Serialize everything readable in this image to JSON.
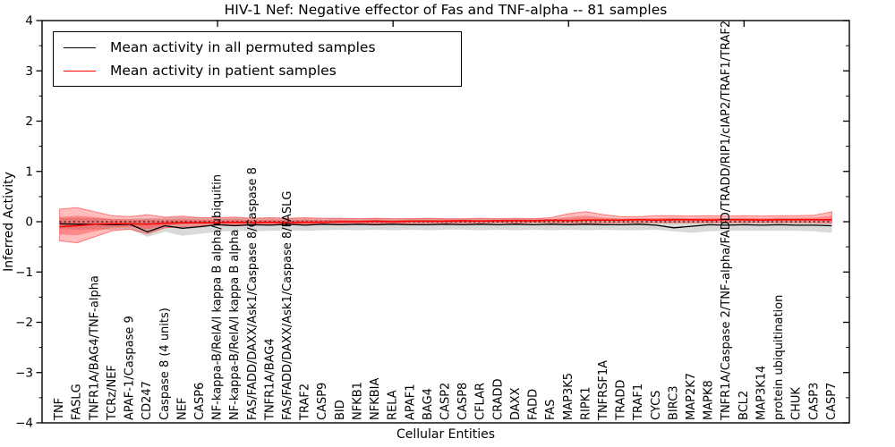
{
  "chart_data": {
    "type": "line",
    "title": "HIV-1 Nef: Negative effector of Fas and TNF-alpha -- 81 samples",
    "xlabel": "Cellular Entities",
    "ylabel": "Inferred Activity",
    "ylim": [
      -4,
      4
    ],
    "xlim": [
      0,
      46
    ],
    "grid": false,
    "legend_position": "upper left",
    "yticks": {
      "values": [
        -4,
        -3,
        -2,
        -1,
        0,
        1,
        2,
        3,
        4
      ],
      "labels": [
        "−4",
        "−3",
        "−2",
        "−1",
        "0",
        "1",
        "2",
        "3",
        "4"
      ],
      "minor_step": 0.5
    },
    "xticks_top": [
      10,
      20,
      30,
      40
    ],
    "categories": [
      "TNF",
      "FASLG",
      "TNFR1A/BAG4/TNF-alpha",
      "TCRz/NEF",
      "APAF-1/Caspase 9",
      "CD247",
      "Caspase 8 (4 units)",
      "NEF",
      "CASP6",
      "NF-kappa-B/RelA/I kappa B alpha/ubiquitin",
      "NF-kappa-B/RelA/I kappa B alpha",
      "FAS/FADD/DAXX/Ask1/Caspase 8/Caspase 8",
      "TNFR1A/BAG4",
      "FAS/FADD/DAXX/Ask1/Caspase 8/FASLG",
      "TRAF2",
      "CASP9",
      "BID",
      "NFKB1",
      "NFKBIA",
      "RELA",
      "APAF1",
      "BAG4",
      "CASP2",
      "CASP8",
      "CFLAR",
      "CRADD",
      "DAXX",
      "FADD",
      "FAS",
      "MAP3K5",
      "RIPK1",
      "TNFRSF1A",
      "TRADD",
      "TRAF1",
      "CYCS",
      "BIRC3",
      "MAP2K7",
      "MAPK8",
      "TNFR1A/Caspase 2/TNF-alpha/FADD/TRADD/RIP1/cIAP2/TRAF1/TRAF2",
      "BCL2",
      "MAP3K14",
      "protein ubiquitination",
      "CHUK",
      "CASP3",
      "CASP7"
    ],
    "zero_line": {
      "y": 0,
      "style": "dotted",
      "color": "#000000"
    },
    "series": [
      {
        "name": "Mean activity in all permuted samples",
        "color": "#000000",
        "values": [
          -0.04,
          -0.05,
          -0.05,
          -0.06,
          -0.05,
          -0.2,
          -0.08,
          -0.13,
          -0.1,
          -0.06,
          -0.08,
          -0.06,
          -0.07,
          -0.05,
          -0.07,
          -0.05,
          -0.06,
          -0.05,
          -0.06,
          -0.05,
          -0.06,
          -0.06,
          -0.05,
          -0.06,
          -0.05,
          -0.06,
          -0.05,
          -0.06,
          -0.05,
          -0.06,
          -0.05,
          -0.06,
          -0.06,
          -0.05,
          -0.07,
          -0.12,
          -0.09,
          -0.06,
          -0.07,
          -0.06,
          -0.07,
          -0.06,
          -0.07,
          -0.07,
          -0.08
        ]
      },
      {
        "name": "Mean activity in patient samples",
        "color": "#ff0000",
        "values": [
          -0.1,
          -0.08,
          -0.05,
          -0.04,
          -0.04,
          -0.05,
          -0.03,
          -0.02,
          -0.02,
          -0.02,
          -0.01,
          -0.02,
          -0.01,
          -0.02,
          -0.01,
          -0.01,
          0.0,
          0.0,
          0.01,
          0.0,
          0.01,
          0.01,
          0.01,
          0.02,
          0.01,
          0.02,
          0.02,
          0.02,
          0.03,
          0.02,
          0.03,
          0.03,
          0.03,
          0.04,
          0.03,
          0.04,
          0.04,
          0.03,
          0.04,
          0.04,
          0.03,
          0.04,
          0.04,
          0.04,
          0.04
        ]
      }
    ],
    "bands": [
      {
        "name": "permuted-samples-spread",
        "color": "rgba(128,128,128,0.30)",
        "edge": "none",
        "upper": [
          0.07,
          0.08,
          0.07,
          0.06,
          0.06,
          0.07,
          0.08,
          0.09,
          0.08,
          0.07,
          0.08,
          0.07,
          0.08,
          0.07,
          0.07,
          0.06,
          0.07,
          0.06,
          0.07,
          0.06,
          0.06,
          0.07,
          0.06,
          0.06,
          0.06,
          0.06,
          0.06,
          0.06,
          0.06,
          0.06,
          0.06,
          0.06,
          0.06,
          0.06,
          0.06,
          0.07,
          0.06,
          0.06,
          0.06,
          0.06,
          0.06,
          0.06,
          0.06,
          0.06,
          0.05
        ],
        "lower": [
          -0.14,
          -0.16,
          -0.15,
          -0.16,
          -0.15,
          -0.3,
          -0.2,
          -0.28,
          -0.24,
          -0.2,
          -0.18,
          -0.19,
          -0.18,
          -0.17,
          -0.18,
          -0.17,
          -0.16,
          -0.17,
          -0.16,
          -0.17,
          -0.16,
          -0.17,
          -0.16,
          -0.16,
          -0.17,
          -0.16,
          -0.17,
          -0.16,
          -0.17,
          -0.16,
          -0.17,
          -0.16,
          -0.17,
          -0.17,
          -0.16,
          -0.19,
          -0.22,
          -0.19,
          -0.18,
          -0.18,
          -0.18,
          -0.18,
          -0.18,
          -0.19,
          -0.22
        ]
      },
      {
        "name": "patient-samples-spread-outer",
        "color": "rgba(255,0,0,0.26)",
        "edge": "rgba(255,0,0,0.45)",
        "upper": [
          0.25,
          0.28,
          0.2,
          0.12,
          0.1,
          0.14,
          0.09,
          0.11,
          0.08,
          0.08,
          0.09,
          0.07,
          0.08,
          0.07,
          0.08,
          0.07,
          0.07,
          0.06,
          0.07,
          0.06,
          0.06,
          0.07,
          0.06,
          0.06,
          0.07,
          0.06,
          0.07,
          0.06,
          0.08,
          0.16,
          0.2,
          0.14,
          0.1,
          0.1,
          0.12,
          0.12,
          0.11,
          0.12,
          0.11,
          0.12,
          0.11,
          0.12,
          0.12,
          0.13,
          0.2
        ],
        "lower": [
          -0.38,
          -0.42,
          -0.3,
          -0.18,
          -0.15,
          -0.24,
          -0.12,
          -0.1,
          -0.08,
          -0.07,
          -0.06,
          -0.07,
          -0.06,
          -0.06,
          -0.05,
          -0.05,
          -0.04,
          -0.04,
          -0.04,
          -0.03,
          -0.04,
          -0.03,
          -0.03,
          -0.03,
          -0.03,
          -0.02,
          -0.03,
          -0.02,
          -0.02,
          -0.03,
          -0.04,
          -0.03,
          -0.02,
          -0.02,
          -0.02,
          -0.02,
          -0.02,
          -0.02,
          -0.02,
          -0.02,
          -0.02,
          -0.02,
          -0.02,
          -0.02,
          -0.03
        ]
      },
      {
        "name": "patient-samples-spread-inner",
        "color": "rgba(255,0,0,0.28)",
        "edge": "none",
        "upper": [
          0.09,
          0.12,
          0.09,
          0.05,
          0.04,
          0.05,
          0.04,
          0.05,
          0.04,
          0.04,
          0.05,
          0.03,
          0.04,
          0.03,
          0.04,
          0.03,
          0.04,
          0.03,
          0.04,
          0.03,
          0.04,
          0.04,
          0.04,
          0.04,
          0.04,
          0.04,
          0.05,
          0.04,
          0.05,
          0.09,
          0.12,
          0.08,
          0.06,
          0.07,
          0.07,
          0.08,
          0.07,
          0.08,
          0.07,
          0.08,
          0.07,
          0.08,
          0.08,
          0.08,
          0.12
        ],
        "lower": [
          -0.25,
          -0.27,
          -0.19,
          -0.12,
          -0.1,
          -0.15,
          -0.08,
          -0.06,
          -0.05,
          -0.05,
          -0.04,
          -0.05,
          -0.04,
          -0.04,
          -0.03,
          -0.03,
          -0.02,
          -0.02,
          -0.02,
          -0.02,
          -0.01,
          -0.01,
          -0.01,
          -0.01,
          0.0,
          0.0,
          0.0,
          0.0,
          0.0,
          0.01,
          0.01,
          0.01,
          0.01,
          0.01,
          0.01,
          0.01,
          0.01,
          0.01,
          0.01,
          0.01,
          0.01,
          0.01,
          0.01,
          0.01,
          0.0
        ]
      }
    ]
  }
}
